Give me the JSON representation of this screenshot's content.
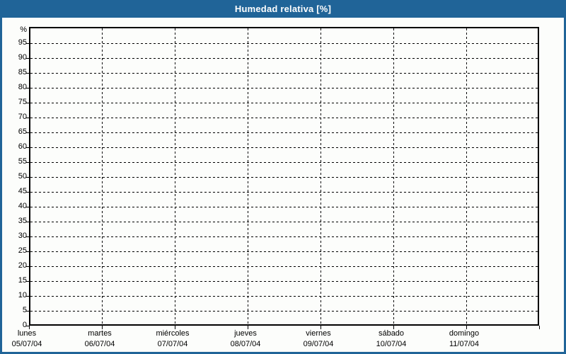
{
  "title": "Humedad relativa [%]",
  "colors": {
    "titlebar_bg": "#206498",
    "titlebar_text": "#ffffff",
    "frame_border": "#206498",
    "background": "#fcfdfb",
    "plot_background": "#fcfdfb",
    "plot_border": "#000000",
    "gridline": "#000000",
    "label_text": "#000000"
  },
  "y_axis": {
    "unit": "%",
    "tick_values": [
      0,
      5,
      10,
      15,
      20,
      25,
      30,
      35,
      40,
      45,
      50,
      55,
      60,
      65,
      70,
      75,
      80,
      85,
      90,
      95
    ]
  },
  "x_axis": {
    "days": [
      {
        "label": "lunes",
        "date": "05/07/04"
      },
      {
        "label": "martes",
        "date": "06/07/04"
      },
      {
        "label": "miércoles",
        "date": "07/07/04"
      },
      {
        "label": "jueves",
        "date": "08/07/04"
      },
      {
        "label": "viernes",
        "date": "09/07/04"
      },
      {
        "label": "sábado",
        "date": "10/07/04"
      },
      {
        "label": "domingo",
        "date": "11/07/04"
      }
    ]
  },
  "chart_data": {
    "type": "line",
    "title": "Humedad relativa [%]",
    "xlabel": "",
    "ylabel": "%",
    "ylim": [
      0,
      100
    ],
    "y_tick_step": 5,
    "x_categories": [
      "lunes 05/07/04",
      "martes 06/07/04",
      "miércoles 07/07/04",
      "jueves 08/07/04",
      "viernes 09/07/04",
      "sábado 10/07/04",
      "domingo 11/07/04"
    ],
    "grid": "dashed",
    "legend": "none",
    "series": []
  }
}
